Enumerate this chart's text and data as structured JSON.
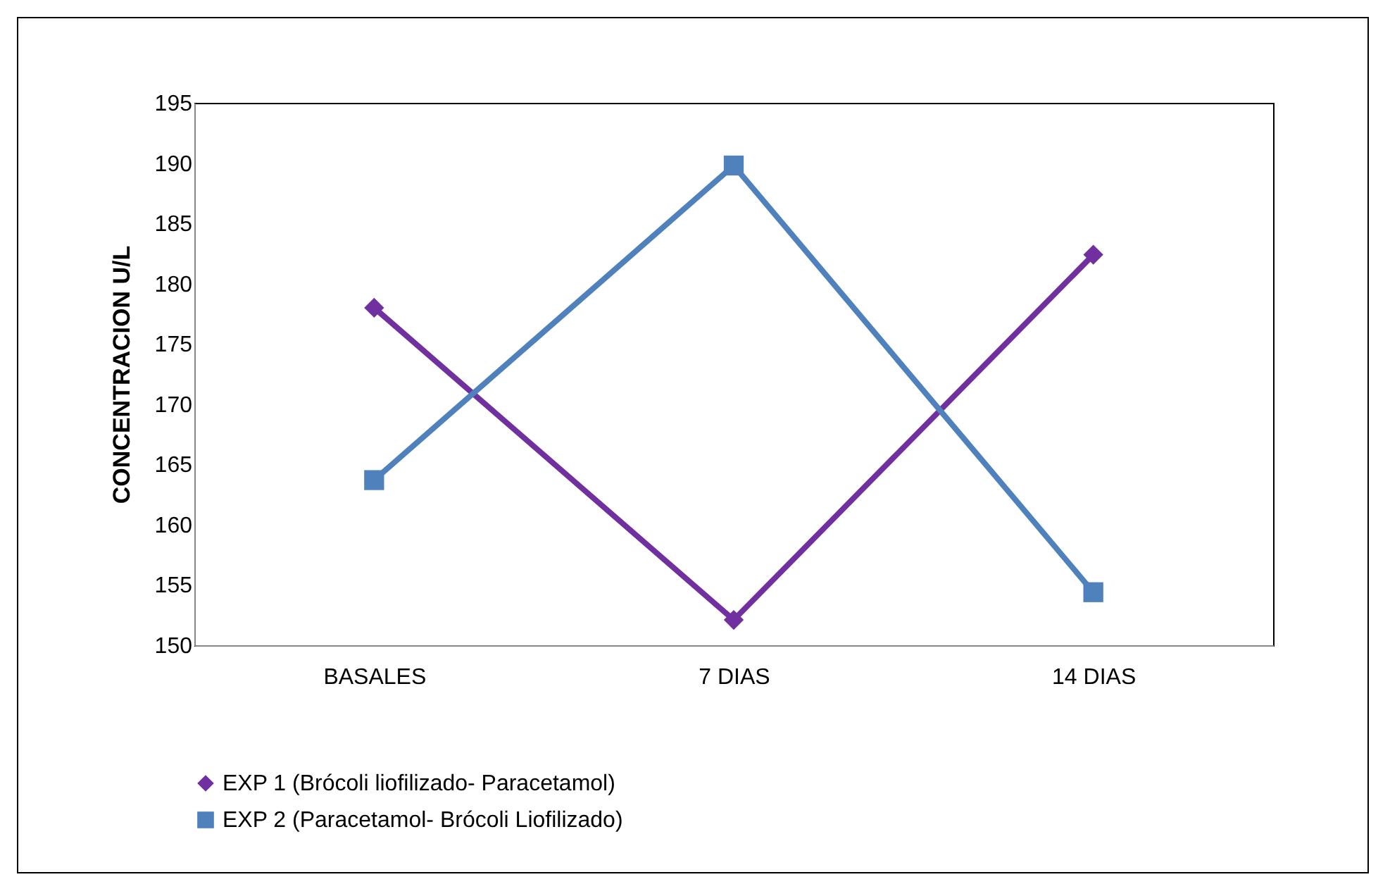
{
  "chart_data": {
    "type": "line",
    "ylabel": "CONCENTRACION U/L",
    "categories": [
      "BASALES",
      "7 DIAS",
      "14 DIAS"
    ],
    "series": [
      {
        "name": "EXP 1 (Brócoli liofilizado- Paracetamol)",
        "color": "#7030a0",
        "marker": "diamond",
        "values": [
          178.0,
          152.1,
          182.4
        ]
      },
      {
        "name": "EXP 2 (Paracetamol- Brócoli Liofilizado)",
        "color": "#4f81bd",
        "marker": "square",
        "values": [
          163.7,
          189.8,
          154.4
        ]
      }
    ],
    "ylim": [
      150,
      195
    ],
    "yticks": [
      150,
      155,
      160,
      165,
      170,
      175,
      180,
      185,
      190,
      195
    ],
    "grid": false,
    "legend": "bottom"
  }
}
